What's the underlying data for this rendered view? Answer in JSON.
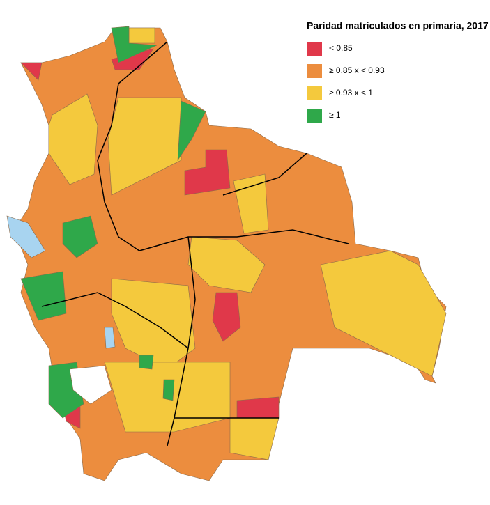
{
  "legend": {
    "title": "Paridad matriculados en primaria, 2017",
    "items": [
      {
        "label": "< 0.85",
        "color": "#e0384a"
      },
      {
        "label": "≥ 0.85 x < 0.93",
        "color": "#ec8d3e"
      },
      {
        "label": "≥ 0.93 x < 1",
        "color": "#f4c93d"
      },
      {
        "label": "≥ 1",
        "color": "#2fa84a"
      }
    ]
  }
}
